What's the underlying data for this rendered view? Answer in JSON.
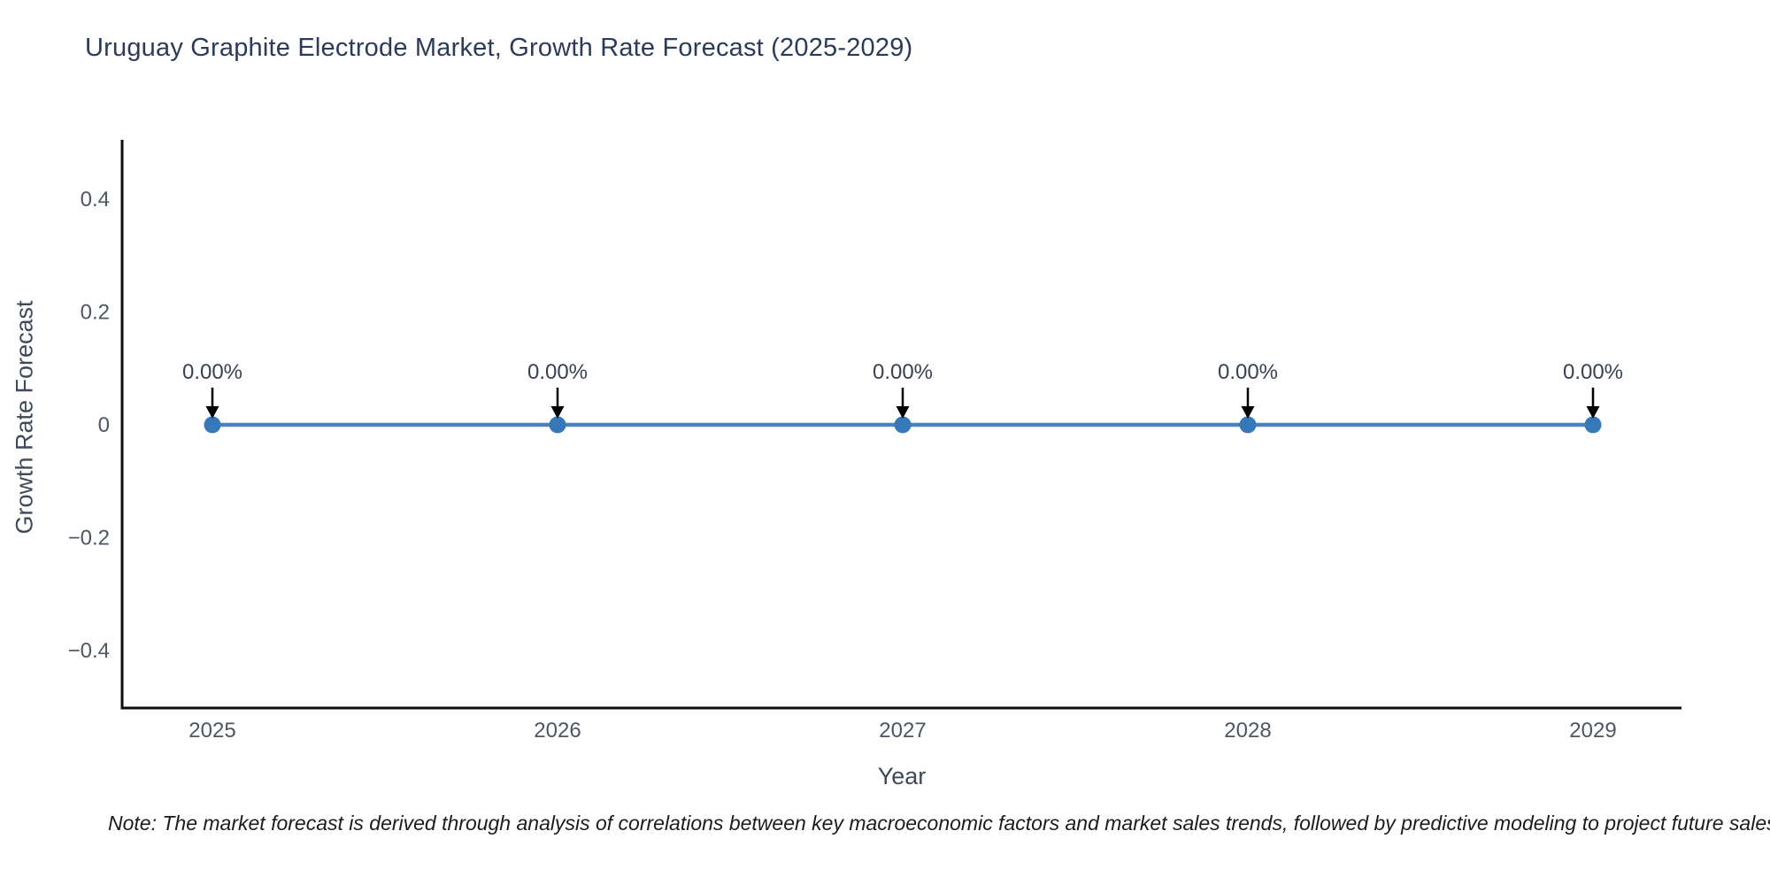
{
  "title": "Uruguay Graphite Electrode Market, Growth Rate Forecast (2025-2029)",
  "note": "Note: The market forecast is derived through analysis of correlations between key macroeconomic factors and market sales trends, followed by predictive modeling to project future sales",
  "chart_data": {
    "type": "line",
    "title": "Uruguay Graphite Electrode Market, Growth Rate Forecast (2025-2029)",
    "xlabel": "Year",
    "ylabel": "Growth Rate Forecast",
    "x": [
      2025,
      2026,
      2027,
      2028,
      2029
    ],
    "xtick_labels": [
      "2025",
      "2026",
      "2027",
      "2028",
      "2029"
    ],
    "series": [
      {
        "name": "Growth Rate Forecast",
        "values": [
          0,
          0,
          0,
          0,
          0
        ]
      }
    ],
    "point_labels": [
      "0.00%",
      "0.00%",
      "0.00%",
      "0.00%",
      "0.00%"
    ],
    "yticks": [
      0.4,
      0.2,
      0,
      -0.2,
      -0.4
    ],
    "ytick_labels": [
      "0.4",
      "0.2",
      "0",
      "−0.2",
      "−0.4"
    ],
    "ylim": [
      -0.5,
      0.5
    ],
    "grid": false,
    "legend": "none",
    "annotation_arrows": true,
    "colors": {
      "line": "#4d82b8",
      "marker": "#3779b8",
      "arrow": "#000000",
      "spine": "#0d0d0d",
      "title": "#2b3c5a",
      "axis_label": "#3e4a5a",
      "tick_label": "#4d5663",
      "annotation": "#39414f"
    }
  }
}
